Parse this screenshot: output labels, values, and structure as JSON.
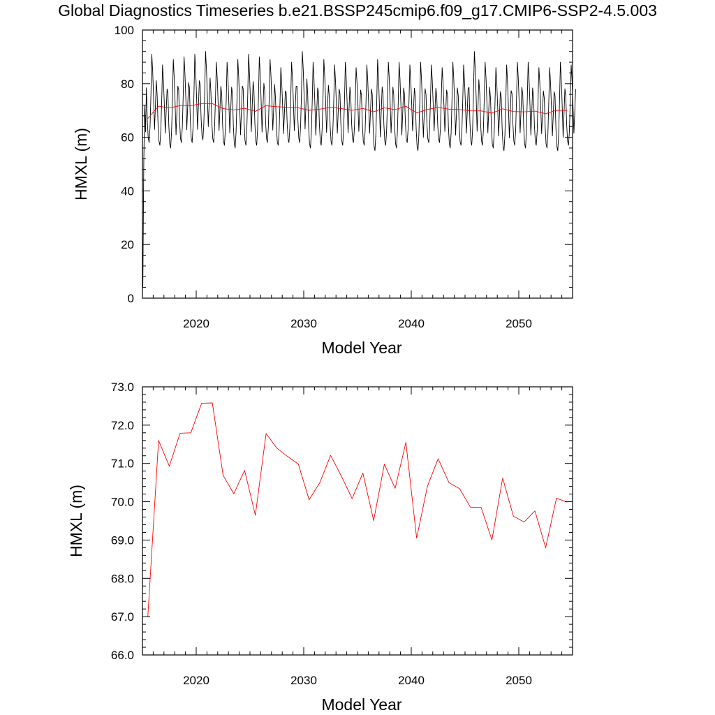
{
  "title": "Global Diagnostics Timeseries b.e21.BSSP245cmip6.f09_g17.CMIP6-SSP2-4.5.003",
  "colors": {
    "monthly": "#000000",
    "annual": "#ff0000"
  },
  "chart_data": [
    {
      "type": "line",
      "xlabel": "Model Year",
      "ylabel": "HMXL (m)",
      "xlim": [
        2015,
        2055
      ],
      "ylim": [
        0,
        100
      ],
      "x_ticks": [
        "2020",
        "2030",
        "2040",
        "2050"
      ],
      "y_ticks": [
        "0",
        "20",
        "40",
        "60",
        "80",
        "100"
      ],
      "grid": false,
      "legend": "none",
      "series": [
        {
          "color": "#000000",
          "x_start": 2015.04,
          "x_step": 0.08333,
          "first_values": [
            4,
            50,
            72,
            62
          ],
          "year_max": [
            91,
            87,
            89,
            90,
            91,
            92,
            88,
            88,
            89,
            91,
            90,
            89,
            86,
            88,
            92,
            88,
            89,
            87,
            88,
            86,
            87,
            89,
            88,
            88,
            87,
            88,
            87,
            86,
            88,
            87,
            92,
            88,
            86,
            87,
            88,
            88,
            86,
            86,
            88,
            87
          ],
          "year_min": [
            58,
            57,
            56,
            58,
            58,
            59,
            58,
            57,
            56,
            57,
            57,
            58,
            57,
            58,
            58,
            56,
            57,
            57,
            57,
            58,
            57,
            55,
            57,
            56,
            58,
            55,
            58,
            58,
            56,
            57,
            57,
            57,
            56,
            55,
            57,
            56,
            57,
            56,
            55,
            57
          ]
        },
        {
          "color": "#ff0000",
          "x": [
            2015.5,
            2016.5,
            2017.5,
            2018.5,
            2019.5,
            2020.5,
            2021.5,
            2022.5,
            2023.5,
            2024.5,
            2025.5,
            2026.5,
            2027.5,
            2028.5,
            2029.5,
            2030.5,
            2031.5,
            2032.5,
            2033.5,
            2034.5,
            2035.5,
            2036.5,
            2037.5,
            2038.5,
            2039.5,
            2040.5,
            2041.5,
            2042.5,
            2043.5,
            2044.5,
            2045.5,
            2046.5,
            2047.5,
            2048.5,
            2049.5,
            2050.5,
            2051.5,
            2052.5,
            2053.5,
            2054.5
          ],
          "values": [
            67.0,
            71.6,
            70.93,
            71.79,
            71.8,
            72.57,
            72.58,
            70.69,
            70.21,
            70.82,
            69.65,
            71.78,
            71.4,
            71.18,
            70.98,
            70.05,
            70.5,
            71.21,
            70.67,
            70.08,
            70.75,
            69.51,
            70.98,
            70.35,
            71.55,
            69.05,
            70.4,
            71.12,
            70.5,
            70.34,
            69.86,
            69.85,
            69.0,
            70.62,
            69.62,
            69.47,
            69.76,
            68.8,
            70.09,
            69.99
          ]
        }
      ]
    },
    {
      "type": "line",
      "xlabel": "Model Year",
      "ylabel": "HMXL (m)",
      "xlim": [
        2015,
        2055
      ],
      "ylim": [
        66,
        73
      ],
      "x_ticks": [
        "2020",
        "2030",
        "2040",
        "2050"
      ],
      "y_ticks": [
        "66.0",
        "67.0",
        "68.0",
        "69.0",
        "70.0",
        "71.0",
        "72.0",
        "73.0"
      ],
      "grid": false,
      "legend": "none",
      "series": [
        {
          "color": "#ff0000",
          "x": [
            2015.5,
            2016.5,
            2017.5,
            2018.5,
            2019.5,
            2020.5,
            2021.5,
            2022.5,
            2023.5,
            2024.5,
            2025.5,
            2026.5,
            2027.5,
            2028.5,
            2029.5,
            2030.5,
            2031.5,
            2032.5,
            2033.5,
            2034.5,
            2035.5,
            2036.5,
            2037.5,
            2038.5,
            2039.5,
            2040.5,
            2041.5,
            2042.5,
            2043.5,
            2044.5,
            2045.5,
            2046.5,
            2047.5,
            2048.5,
            2049.5,
            2050.5,
            2051.5,
            2052.5,
            2053.5,
            2054.5
          ],
          "values": [
            67.0,
            71.6,
            70.93,
            71.79,
            71.8,
            72.57,
            72.58,
            70.69,
            70.21,
            70.82,
            69.65,
            71.78,
            71.4,
            71.18,
            70.98,
            70.05,
            70.5,
            71.21,
            70.67,
            70.08,
            70.75,
            69.51,
            70.98,
            70.35,
            71.55,
            69.05,
            70.4,
            71.12,
            70.5,
            70.34,
            69.86,
            69.85,
            69.0,
            70.62,
            69.62,
            69.47,
            69.76,
            68.8,
            70.09,
            69.99
          ]
        }
      ]
    }
  ]
}
